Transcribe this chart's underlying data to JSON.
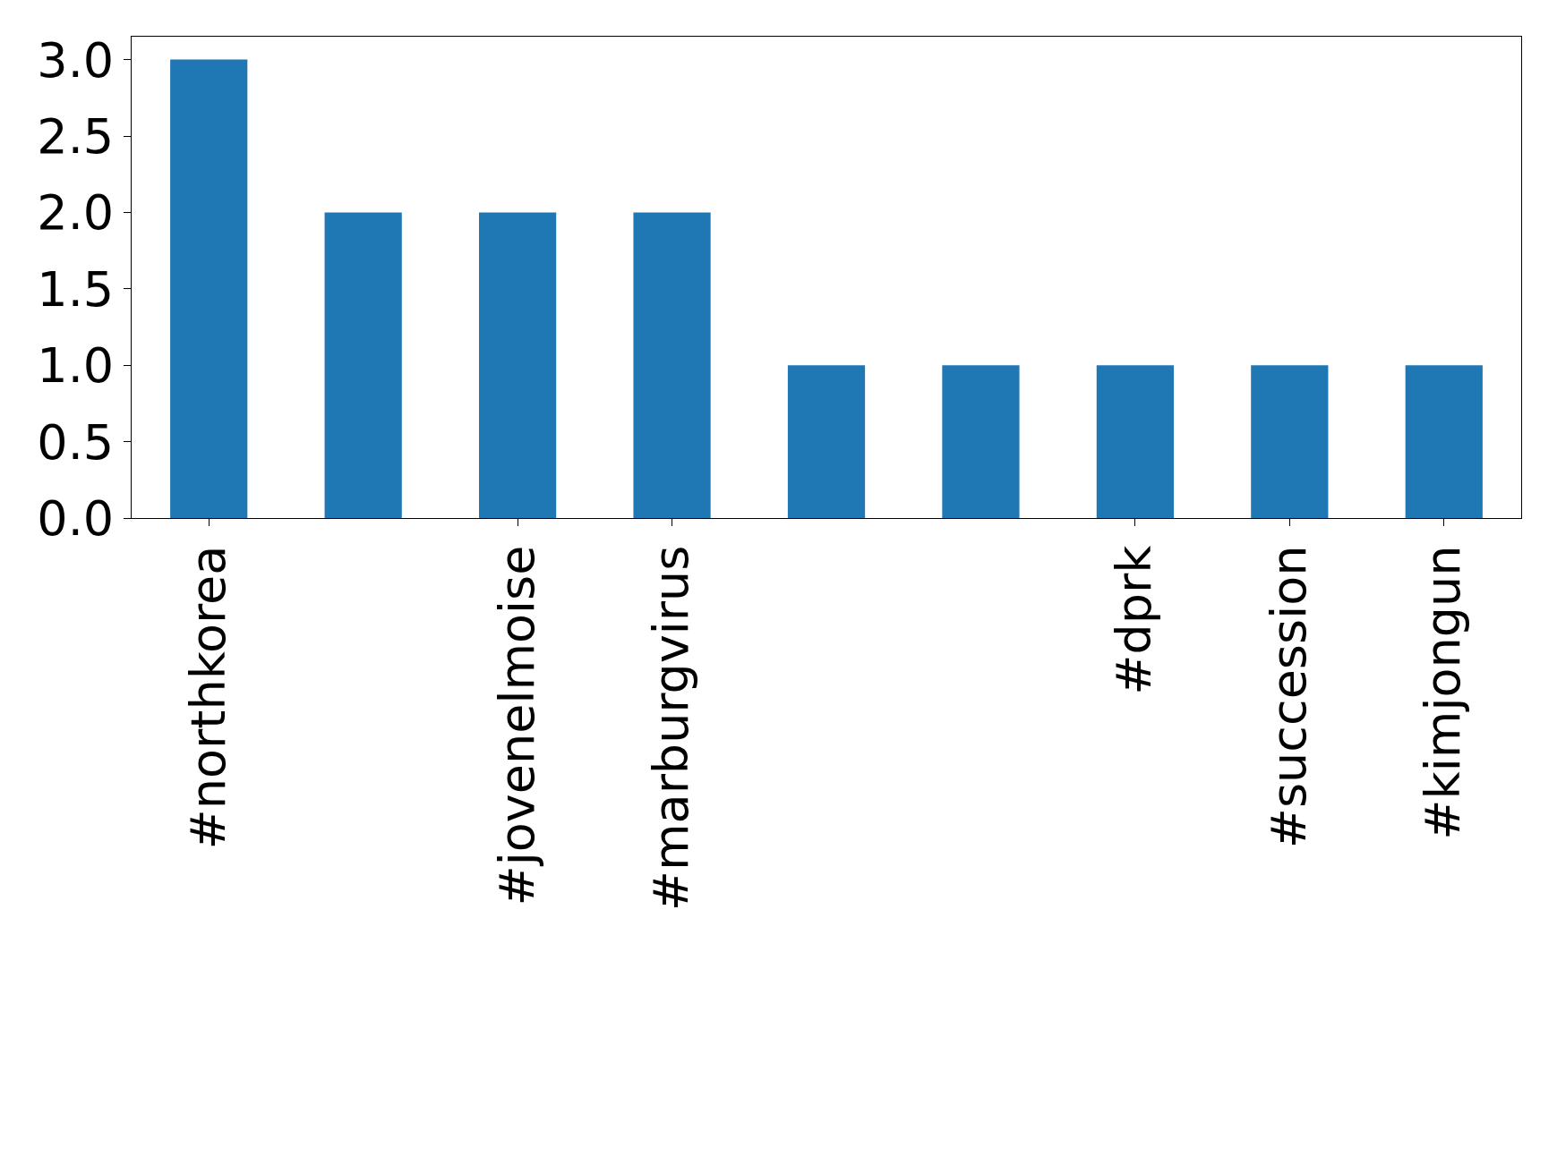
{
  "chart_data": {
    "type": "bar",
    "categories": [
      "#northkorea",
      null,
      "#jovenelmoise",
      "#marburgvirus",
      null,
      null,
      "#dprk",
      "#succession",
      "#kimjongun"
    ],
    "values": [
      3,
      2,
      2,
      2,
      1,
      1,
      1,
      1,
      1
    ],
    "color": "#1f77b4",
    "ylim": [
      0,
      3.15
    ],
    "yticks": [
      {
        "value": 0,
        "label": "0.0"
      },
      {
        "value": 0.5,
        "label": "0.5"
      },
      {
        "value": 1,
        "label": "1.0"
      },
      {
        "value": 1.5,
        "label": "1.5"
      },
      {
        "value": 2,
        "label": "2.0"
      },
      {
        "value": 2.5,
        "label": "2.5"
      },
      {
        "value": 3,
        "label": "3.0"
      }
    ],
    "legend": false
  }
}
